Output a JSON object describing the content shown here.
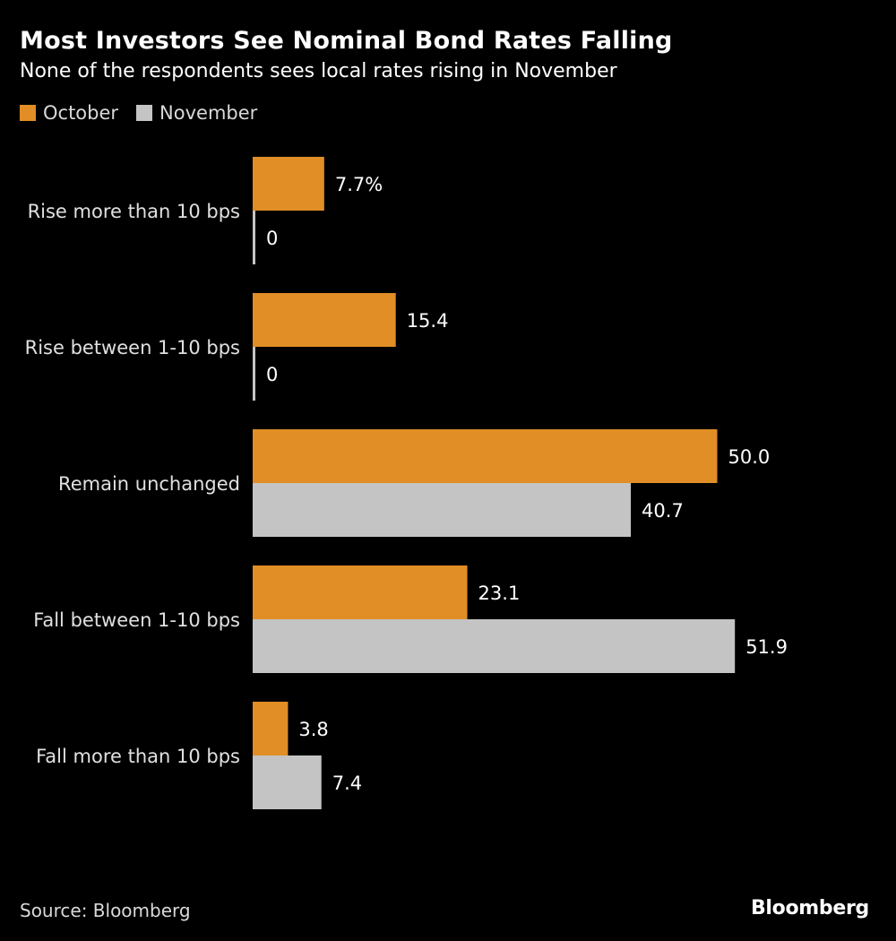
{
  "header": {
    "title": "Most Investors See Nominal Bond Rates Falling",
    "subtitle": "None of the respondents sees local rates rising in November"
  },
  "legend": {
    "items": [
      {
        "label": "October",
        "color": "#E08E25"
      },
      {
        "label": "November",
        "color": "#C4C4C4"
      }
    ]
  },
  "footer": {
    "source": "Source: Bloomberg",
    "brand": "Bloomberg"
  },
  "chart_data": {
    "type": "bar",
    "orientation": "horizontal",
    "categories": [
      "Rise more than 10 bps",
      "Rise between 1-10 bps",
      "Remain unchanged",
      "Fall between 1-10 bps",
      "Fall more than 10 bps"
    ],
    "series": [
      {
        "name": "October",
        "color": "#E08E25",
        "values": [
          7.7,
          15.4,
          50.0,
          23.1,
          3.8
        ],
        "labels": [
          "7.7%",
          "15.4",
          "50.0",
          "23.1",
          "3.8"
        ]
      },
      {
        "name": "November",
        "color": "#C4C4C4",
        "values": [
          0,
          0,
          40.7,
          51.9,
          7.4
        ],
        "labels": [
          "0",
          "0",
          "40.7",
          "51.9",
          "7.4"
        ]
      }
    ],
    "title": "Most Investors See Nominal Bond Rates Falling",
    "xlabel": "",
    "ylabel": "",
    "xlim": [
      0,
      60
    ],
    "grid": false,
    "legend_position": "top-left"
  }
}
